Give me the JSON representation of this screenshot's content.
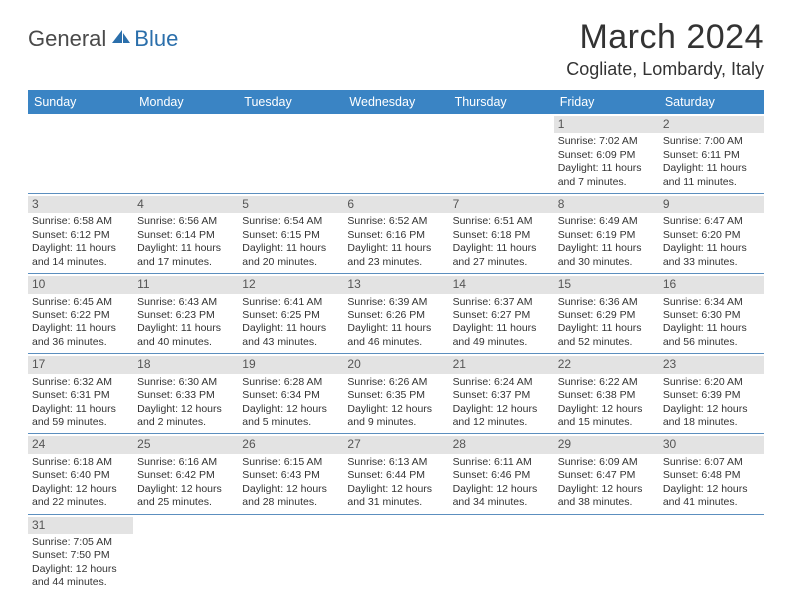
{
  "brand": {
    "part1": "General",
    "part2": "Blue"
  },
  "title": "March 2024",
  "location": "Cogliate, Lombardy, Italy",
  "colors": {
    "header_bg": "#3a84c4",
    "header_text": "#ffffff",
    "daynum_bg": "#e3e3e3",
    "rule": "#5c8fbf",
    "brand_blue": "#2b6fab"
  },
  "weekdays": [
    "Sunday",
    "Monday",
    "Tuesday",
    "Wednesday",
    "Thursday",
    "Friday",
    "Saturday"
  ],
  "weeks": [
    [
      null,
      null,
      null,
      null,
      null,
      {
        "n": "1",
        "sunrise": "Sunrise: 7:02 AM",
        "sunset": "Sunset: 6:09 PM",
        "day1": "Daylight: 11 hours",
        "day2": "and 7 minutes."
      },
      {
        "n": "2",
        "sunrise": "Sunrise: 7:00 AM",
        "sunset": "Sunset: 6:11 PM",
        "day1": "Daylight: 11 hours",
        "day2": "and 11 minutes."
      }
    ],
    [
      {
        "n": "3",
        "sunrise": "Sunrise: 6:58 AM",
        "sunset": "Sunset: 6:12 PM",
        "day1": "Daylight: 11 hours",
        "day2": "and 14 minutes."
      },
      {
        "n": "4",
        "sunrise": "Sunrise: 6:56 AM",
        "sunset": "Sunset: 6:14 PM",
        "day1": "Daylight: 11 hours",
        "day2": "and 17 minutes."
      },
      {
        "n": "5",
        "sunrise": "Sunrise: 6:54 AM",
        "sunset": "Sunset: 6:15 PM",
        "day1": "Daylight: 11 hours",
        "day2": "and 20 minutes."
      },
      {
        "n": "6",
        "sunrise": "Sunrise: 6:52 AM",
        "sunset": "Sunset: 6:16 PM",
        "day1": "Daylight: 11 hours",
        "day2": "and 23 minutes."
      },
      {
        "n": "7",
        "sunrise": "Sunrise: 6:51 AM",
        "sunset": "Sunset: 6:18 PM",
        "day1": "Daylight: 11 hours",
        "day2": "and 27 minutes."
      },
      {
        "n": "8",
        "sunrise": "Sunrise: 6:49 AM",
        "sunset": "Sunset: 6:19 PM",
        "day1": "Daylight: 11 hours",
        "day2": "and 30 minutes."
      },
      {
        "n": "9",
        "sunrise": "Sunrise: 6:47 AM",
        "sunset": "Sunset: 6:20 PM",
        "day1": "Daylight: 11 hours",
        "day2": "and 33 minutes."
      }
    ],
    [
      {
        "n": "10",
        "sunrise": "Sunrise: 6:45 AM",
        "sunset": "Sunset: 6:22 PM",
        "day1": "Daylight: 11 hours",
        "day2": "and 36 minutes."
      },
      {
        "n": "11",
        "sunrise": "Sunrise: 6:43 AM",
        "sunset": "Sunset: 6:23 PM",
        "day1": "Daylight: 11 hours",
        "day2": "and 40 minutes."
      },
      {
        "n": "12",
        "sunrise": "Sunrise: 6:41 AM",
        "sunset": "Sunset: 6:25 PM",
        "day1": "Daylight: 11 hours",
        "day2": "and 43 minutes."
      },
      {
        "n": "13",
        "sunrise": "Sunrise: 6:39 AM",
        "sunset": "Sunset: 6:26 PM",
        "day1": "Daylight: 11 hours",
        "day2": "and 46 minutes."
      },
      {
        "n": "14",
        "sunrise": "Sunrise: 6:37 AM",
        "sunset": "Sunset: 6:27 PM",
        "day1": "Daylight: 11 hours",
        "day2": "and 49 minutes."
      },
      {
        "n": "15",
        "sunrise": "Sunrise: 6:36 AM",
        "sunset": "Sunset: 6:29 PM",
        "day1": "Daylight: 11 hours",
        "day2": "and 52 minutes."
      },
      {
        "n": "16",
        "sunrise": "Sunrise: 6:34 AM",
        "sunset": "Sunset: 6:30 PM",
        "day1": "Daylight: 11 hours",
        "day2": "and 56 minutes."
      }
    ],
    [
      {
        "n": "17",
        "sunrise": "Sunrise: 6:32 AM",
        "sunset": "Sunset: 6:31 PM",
        "day1": "Daylight: 11 hours",
        "day2": "and 59 minutes."
      },
      {
        "n": "18",
        "sunrise": "Sunrise: 6:30 AM",
        "sunset": "Sunset: 6:33 PM",
        "day1": "Daylight: 12 hours",
        "day2": "and 2 minutes."
      },
      {
        "n": "19",
        "sunrise": "Sunrise: 6:28 AM",
        "sunset": "Sunset: 6:34 PM",
        "day1": "Daylight: 12 hours",
        "day2": "and 5 minutes."
      },
      {
        "n": "20",
        "sunrise": "Sunrise: 6:26 AM",
        "sunset": "Sunset: 6:35 PM",
        "day1": "Daylight: 12 hours",
        "day2": "and 9 minutes."
      },
      {
        "n": "21",
        "sunrise": "Sunrise: 6:24 AM",
        "sunset": "Sunset: 6:37 PM",
        "day1": "Daylight: 12 hours",
        "day2": "and 12 minutes."
      },
      {
        "n": "22",
        "sunrise": "Sunrise: 6:22 AM",
        "sunset": "Sunset: 6:38 PM",
        "day1": "Daylight: 12 hours",
        "day2": "and 15 minutes."
      },
      {
        "n": "23",
        "sunrise": "Sunrise: 6:20 AM",
        "sunset": "Sunset: 6:39 PM",
        "day1": "Daylight: 12 hours",
        "day2": "and 18 minutes."
      }
    ],
    [
      {
        "n": "24",
        "sunrise": "Sunrise: 6:18 AM",
        "sunset": "Sunset: 6:40 PM",
        "day1": "Daylight: 12 hours",
        "day2": "and 22 minutes."
      },
      {
        "n": "25",
        "sunrise": "Sunrise: 6:16 AM",
        "sunset": "Sunset: 6:42 PM",
        "day1": "Daylight: 12 hours",
        "day2": "and 25 minutes."
      },
      {
        "n": "26",
        "sunrise": "Sunrise: 6:15 AM",
        "sunset": "Sunset: 6:43 PM",
        "day1": "Daylight: 12 hours",
        "day2": "and 28 minutes."
      },
      {
        "n": "27",
        "sunrise": "Sunrise: 6:13 AM",
        "sunset": "Sunset: 6:44 PM",
        "day1": "Daylight: 12 hours",
        "day2": "and 31 minutes."
      },
      {
        "n": "28",
        "sunrise": "Sunrise: 6:11 AM",
        "sunset": "Sunset: 6:46 PM",
        "day1": "Daylight: 12 hours",
        "day2": "and 34 minutes."
      },
      {
        "n": "29",
        "sunrise": "Sunrise: 6:09 AM",
        "sunset": "Sunset: 6:47 PM",
        "day1": "Daylight: 12 hours",
        "day2": "and 38 minutes."
      },
      {
        "n": "30",
        "sunrise": "Sunrise: 6:07 AM",
        "sunset": "Sunset: 6:48 PM",
        "day1": "Daylight: 12 hours",
        "day2": "and 41 minutes."
      }
    ],
    [
      {
        "n": "31",
        "sunrise": "Sunrise: 7:05 AM",
        "sunset": "Sunset: 7:50 PM",
        "day1": "Daylight: 12 hours",
        "day2": "and 44 minutes."
      },
      null,
      null,
      null,
      null,
      null,
      null
    ]
  ]
}
